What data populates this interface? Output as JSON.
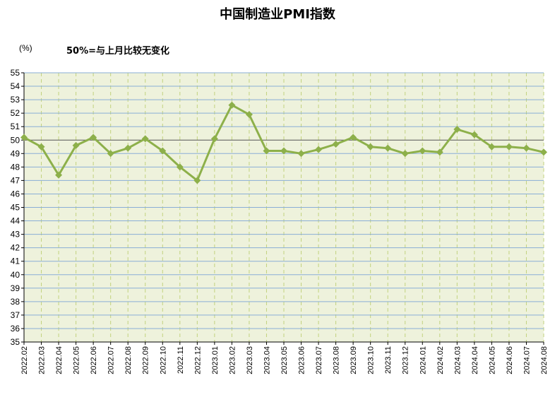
{
  "chart_data": {
    "type": "line",
    "title": "中国制造业PMI指数",
    "unit_label": "(%)",
    "annotation": "50%=与上月比较无变化",
    "ylim": [
      35,
      55
    ],
    "y_ticks": [
      35,
      36,
      37,
      38,
      39,
      40,
      41,
      42,
      43,
      44,
      45,
      46,
      47,
      48,
      49,
      50,
      51,
      52,
      53,
      54,
      55
    ],
    "reference_line": 50,
    "grid": true,
    "legend": "none",
    "categories": [
      "2022.02",
      "2022.03",
      "2022.04",
      "2022.05",
      "2022.06",
      "2022.07",
      "2022.08",
      "2022.09",
      "2022.10",
      "2022.11",
      "2022.12",
      "2023.01",
      "2023.02",
      "2023.03",
      "2023.04",
      "2023.05",
      "2023.06",
      "2023.07",
      "2023.08",
      "2023.09",
      "2023.10",
      "2023.11",
      "2023.12",
      "2024.01",
      "2024.02",
      "2024.03",
      "2024.04",
      "2024.05",
      "2024.06",
      "2024.07",
      "2024.08"
    ],
    "series": [
      {
        "color": "#8db04a",
        "values": [
          50.2,
          49.5,
          47.4,
          49.6,
          50.2,
          49.0,
          49.4,
          50.1,
          49.2,
          48.0,
          47.0,
          50.1,
          52.6,
          51.9,
          49.2,
          49.2,
          49.0,
          49.3,
          49.7,
          50.2,
          49.5,
          49.4,
          49.0,
          49.2,
          49.1,
          50.8,
          50.4,
          49.5,
          49.5,
          49.4,
          49.1
        ]
      }
    ],
    "colors": {
      "plot_bg": "#eef2dc",
      "h_grid": "#8aaed6",
      "v_grid": "#c2d27e",
      "axis": "#000000"
    }
  }
}
